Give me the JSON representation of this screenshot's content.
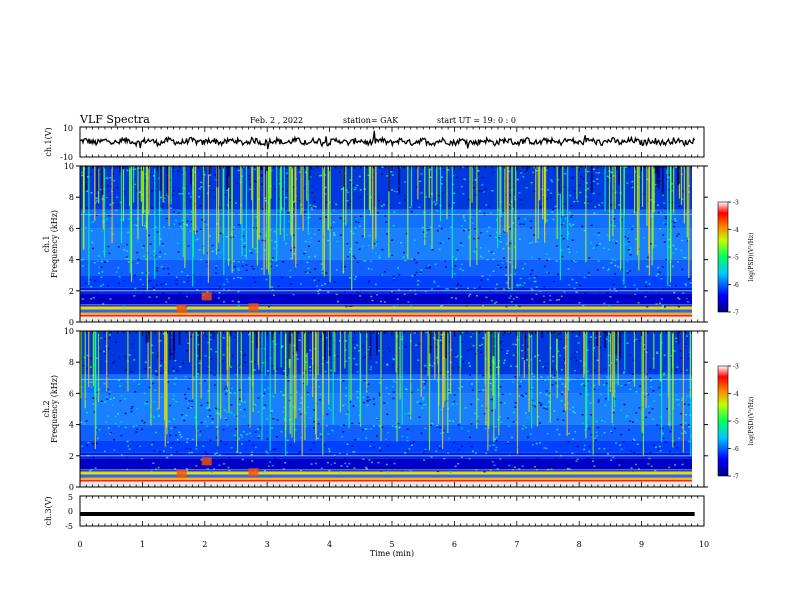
{
  "header": {
    "title": "VLF Spectra",
    "date": "Feb. 2 , 2022",
    "station": "station= GAK",
    "start": "start UT = 19: 0 : 0"
  },
  "chart_data": [
    {
      "type": "line",
      "name": "ch1-voltage",
      "ylabel": "ch.1(V)",
      "ylim": [
        -10,
        10
      ],
      "yticks": [
        "10",
        "-10"
      ],
      "xlim": [
        0,
        10
      ],
      "trace_level_approx": 0.3
    },
    {
      "type": "heatmap",
      "name": "ch1-spectrogram",
      "ylabel_line1": "ch.1",
      "ylabel_line2": "Frequency (kHz)",
      "ylim": [
        0,
        10
      ],
      "yticks": [
        "0",
        "2",
        "4",
        "6",
        "8",
        "10"
      ],
      "xlim": [
        0,
        9.85
      ],
      "colorbar": {
        "label": "log(PSD)(V²/Hz)",
        "range": [
          -7,
          -3
        ],
        "ticks": [
          "-3",
          "-4",
          "-5",
          "-6",
          "-7"
        ]
      }
    },
    {
      "type": "heatmap",
      "name": "ch2-spectrogram",
      "ylabel_line1": "ch.2",
      "ylabel_line2": "Frequency (kHz)",
      "ylim": [
        0,
        10
      ],
      "yticks": [
        "0",
        "2",
        "4",
        "6",
        "8",
        "10"
      ],
      "xlim": [
        0,
        9.85
      ],
      "colorbar": {
        "label": "log(PSD)(V²/Hz)",
        "range": [
          -7,
          -3
        ],
        "ticks": [
          "-3",
          "-4",
          "-5",
          "-6",
          "-7"
        ]
      }
    },
    {
      "type": "line",
      "name": "ch3-voltage",
      "ylabel": "ch.3(V)",
      "ylim": [
        -5,
        5
      ],
      "yticks": [
        "5",
        "0",
        "-5"
      ],
      "xlim": [
        0,
        10
      ],
      "trace_level_approx": -1
    }
  ],
  "xaxis": {
    "label": "Time (min)",
    "ticks": [
      "0",
      "1",
      "2",
      "3",
      "4",
      "5",
      "6",
      "7",
      "8",
      "9",
      "10"
    ],
    "range": [
      0,
      10
    ]
  }
}
